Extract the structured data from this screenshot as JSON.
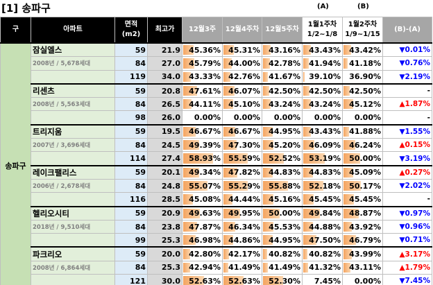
{
  "header": {
    "title": "[1] 송파구",
    "label_a": "(A)",
    "label_b": "(B)"
  },
  "table": {
    "columns": [
      [
        "구"
      ],
      [
        "아파트"
      ],
      [
        "면적",
        "(m2)"
      ],
      [
        "최고가"
      ],
      [
        "12월3주"
      ],
      [
        "12월4주차"
      ],
      [
        "12월5주차"
      ],
      [
        "1월1주차",
        "1/2~1/8"
      ],
      [
        "1월2주차",
        "1/9~1/15"
      ],
      [
        "(B)-(A)"
      ]
    ],
    "district": "송파구",
    "groups": [
      {
        "name": "잠실엘스",
        "info": "2008년 / 5,678세대",
        "rows": [
          [
            "59",
            "21.9",
            "45.36%",
            "45.31%",
            "43.16%",
            "43.43%",
            "43.42%",
            "▼0.01%"
          ],
          [
            "84",
            "27.0",
            "45.79%",
            "44.00%",
            "42.78%",
            "41.94%",
            "41.18%",
            "▼0.76%"
          ],
          [
            "119",
            "34.0",
            "43.33%",
            "42.76%",
            "41.67%",
            "39.10%",
            "36.90%",
            "▼2.19%"
          ]
        ]
      },
      {
        "name": "리센츠",
        "info": "2008년 / 5,563세대",
        "rows": [
          [
            "59",
            "20.8",
            "47.61%",
            "46.07%",
            "42.50%",
            "42.50%",
            "42.50%",
            "-"
          ],
          [
            "84",
            "26.5",
            "44.11%",
            "45.10%",
            "43.24%",
            "43.24%",
            "45.12%",
            "▲1.87%"
          ],
          [
            "98",
            "26.0",
            "0.00%",
            "0.00%",
            "0.00%",
            "0.00%",
            "0.00%",
            "-"
          ]
        ]
      },
      {
        "name": "트리지움",
        "info": "2007년 / 3,696세대",
        "rows": [
          [
            "59",
            "19.5",
            "46.67%",
            "46.67%",
            "44.95%",
            "43.43%",
            "41.88%",
            "▼1.55%"
          ],
          [
            "84",
            "24.5",
            "49.39%",
            "47.30%",
            "45.20%",
            "46.09%",
            "46.24%",
            "▲0.15%"
          ],
          [
            "114",
            "27.4",
            "58.93%",
            "55.59%",
            "52.52%",
            "53.19%",
            "50.00%",
            "▼3.19%"
          ]
        ]
      },
      {
        "name": "레이크팰리스",
        "info": "2006년 / 2,678세대",
        "rows": [
          [
            "59",
            "20.1",
            "49.34%",
            "47.82%",
            "44.83%",
            "44.83%",
            "45.09%",
            "▲0.27%"
          ],
          [
            "84",
            "24.8",
            "55.07%",
            "55.29%",
            "55.88%",
            "52.18%",
            "50.17%",
            "▼2.02%"
          ],
          [
            "116",
            "28.5",
            "45.08%",
            "44.44%",
            "45.16%",
            "45.45%",
            "45.45%",
            "-"
          ]
        ]
      },
      {
        "name": "헬리오시티",
        "info": "2018년 / 9,510세대",
        "rows": [
          [
            "59",
            "20.9",
            "49.63%",
            "49.95%",
            "50.00%",
            "49.84%",
            "48.87%",
            "▼0.97%"
          ],
          [
            "84",
            "23.8",
            "47.87%",
            "46.34%",
            "45.53%",
            "44.88%",
            "43.92%",
            "▼0.96%"
          ],
          [
            "99",
            "25.3",
            "46.98%",
            "44.86%",
            "44.95%",
            "47.50%",
            "46.79%",
            "▼0.71%"
          ]
        ]
      },
      {
        "name": "파크리오",
        "info": "2008년 / 6,864세대",
        "rows": [
          [
            "59",
            "20.0",
            "42.80%",
            "42.17%",
            "40.82%",
            "40.82%",
            "43.99%",
            "▲3.17%"
          ],
          [
            "84",
            "25.3",
            "42.94%",
            "41.49%",
            "41.49%",
            "41.32%",
            "43.11%",
            "▲1.79%"
          ],
          [
            "121",
            "30.0",
            "52.63%",
            "52.63%",
            "52.30%",
            "7.45%",
            "0.00%",
            "▼7.45%"
          ]
        ]
      }
    ]
  }
}
